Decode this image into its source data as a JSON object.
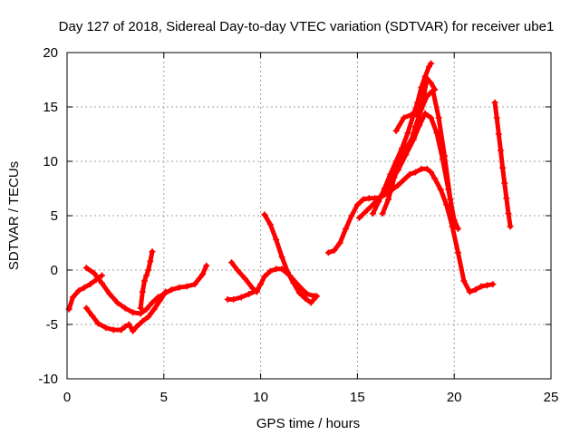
{
  "chart_data": {
    "type": "scatter",
    "title": "Day 127 of 2018, Sidereal Day-to-day VTEC variation (SDTVAR) for receiver ube1",
    "xlabel": "GPS time / hours",
    "ylabel": "SDTVAR / TECUs",
    "xlim": [
      0,
      25
    ],
    "ylim": [
      -10,
      20
    ],
    "xticks": [
      0,
      5,
      10,
      15,
      20,
      25
    ],
    "yticks": [
      -10,
      -5,
      0,
      5,
      10,
      15,
      20
    ],
    "grid": true,
    "marker": "plus",
    "color": "#ff0000",
    "series": [
      {
        "x": [
          0.1,
          0.3,
          0.6,
          0.9,
          1.2,
          1.5,
          1.8
        ],
        "y": [
          -3.6,
          -2.5,
          -1.9,
          -1.6,
          -1.3,
          -0.9,
          -0.5
        ]
      },
      {
        "x": [
          1.0,
          1.4,
          1.8,
          2.2,
          2.6,
          3.0,
          3.4,
          3.8,
          4.1,
          4.4,
          4.7,
          5.0,
          5.4,
          5.8,
          6.2,
          6.6,
          7.0,
          7.2
        ],
        "y": [
          0.2,
          -0.3,
          -1.2,
          -2.2,
          -3.0,
          -3.5,
          -3.9,
          -4.0,
          -3.6,
          -3.0,
          -2.5,
          -2.2,
          -1.8,
          -1.6,
          -1.5,
          -1.3,
          -0.4,
          0.4
        ]
      },
      {
        "x": [
          1.0,
          1.3,
          1.6,
          2.0,
          2.4,
          2.8,
          3.0,
          3.2,
          3.4,
          3.6,
          3.9,
          4.2,
          4.5,
          4.8,
          5.1
        ],
        "y": [
          -3.5,
          -4.2,
          -4.9,
          -5.3,
          -5.5,
          -5.5,
          -5.2,
          -5.0,
          -5.6,
          -5.2,
          -4.7,
          -4.3,
          -3.6,
          -2.8,
          -2.0
        ]
      },
      {
        "x": [
          3.8,
          3.9,
          4.0,
          4.1,
          4.2,
          4.3,
          4.4
        ],
        "y": [
          -3.5,
          -2.0,
          -1.0,
          -0.5,
          0.0,
          0.8,
          1.7
        ]
      },
      {
        "x": [
          8.3,
          8.6,
          9.0,
          9.4,
          9.8,
          10.0,
          10.2,
          10.5,
          10.8,
          11.1,
          11.5,
          12.0,
          12.4,
          12.8
        ],
        "y": [
          -2.7,
          -2.7,
          -2.5,
          -2.2,
          -1.9,
          -1.3,
          -0.6,
          -0.1,
          0.1,
          0.1,
          -0.5,
          -1.5,
          -2.2,
          -2.4
        ]
      },
      {
        "x": [
          8.5,
          8.8,
          9.2,
          9.6,
          9.8
        ],
        "y": [
          0.7,
          0.0,
          -0.8,
          -1.7,
          -2.0
        ]
      },
      {
        "x": [
          10.2,
          10.5,
          10.8,
          11.1,
          11.4,
          11.7,
          12.0,
          12.3,
          12.6,
          12.9
        ],
        "y": [
          5.1,
          4.2,
          2.8,
          1.2,
          -0.2,
          -1.2,
          -2.1,
          -2.6,
          -3.0,
          -2.4
        ]
      },
      {
        "x": [
          13.5,
          13.8,
          14.1,
          14.4,
          14.7,
          15.0,
          15.3,
          15.6,
          15.9,
          16.2,
          16.5,
          16.8,
          17.1,
          17.4,
          17.7,
          18.0,
          18.3,
          18.6,
          18.8,
          19.0,
          19.3,
          19.6,
          19.9,
          20.2,
          20.5,
          20.8,
          21.1,
          21.4,
          21.7,
          22.0
        ],
        "y": [
          1.6,
          1.8,
          2.5,
          3.8,
          5.0,
          6.0,
          6.5,
          6.6,
          6.6,
          6.7,
          7.0,
          7.4,
          7.8,
          8.3,
          8.8,
          9.0,
          9.3,
          9.3,
          9.0,
          8.4,
          7.4,
          6.0,
          4.0,
          1.6,
          -1.0,
          -2.0,
          -1.8,
          -1.5,
          -1.4,
          -1.3
        ]
      },
      {
        "x": [
          15.1,
          15.5,
          15.9,
          16.3,
          16.7,
          17.1,
          17.5,
          17.9,
          18.2,
          18.5,
          18.8,
          19.1,
          19.4,
          19.7,
          20.0,
          20.2
        ],
        "y": [
          4.8,
          5.5,
          6.2,
          7.0,
          8.0,
          9.2,
          10.6,
          12.0,
          13.3,
          14.4,
          14.0,
          12.6,
          10.2,
          7.4,
          4.6,
          3.8
        ]
      },
      {
        "x": [
          15.8,
          16.1,
          16.4,
          16.7,
          17.0,
          17.3,
          17.6,
          17.9,
          18.1,
          18.3,
          18.5,
          18.7,
          18.8
        ],
        "y": [
          5.2,
          6.3,
          7.5,
          8.8,
          10.0,
          11.2,
          12.6,
          14.3,
          15.4,
          16.8,
          17.8,
          18.7,
          19.0
        ]
      },
      {
        "x": [
          16.3,
          16.6,
          16.9,
          17.2,
          17.5,
          17.8,
          18.0,
          18.3,
          18.6,
          18.9,
          19.2,
          19.5,
          19.8,
          20.0
        ],
        "y": [
          5.2,
          6.5,
          8.5,
          10.3,
          11.2,
          12.0,
          13.2,
          14.8,
          16.0,
          16.5,
          14.0,
          10.5,
          6.5,
          4.0
        ]
      },
      {
        "x": [
          17.0,
          17.4,
          17.8,
          18.1,
          18.4,
          18.6,
          18.8,
          19.0
        ],
        "y": [
          12.8,
          14.0,
          14.3,
          14.2,
          15.8,
          17.6,
          17.2,
          16.6
        ]
      },
      {
        "x": [
          22.1,
          22.2,
          22.3,
          22.4,
          22.5,
          22.6,
          22.7,
          22.8,
          22.9
        ],
        "y": [
          15.4,
          14.0,
          12.5,
          11.0,
          9.4,
          8.0,
          6.6,
          5.2,
          4.0
        ]
      }
    ]
  }
}
